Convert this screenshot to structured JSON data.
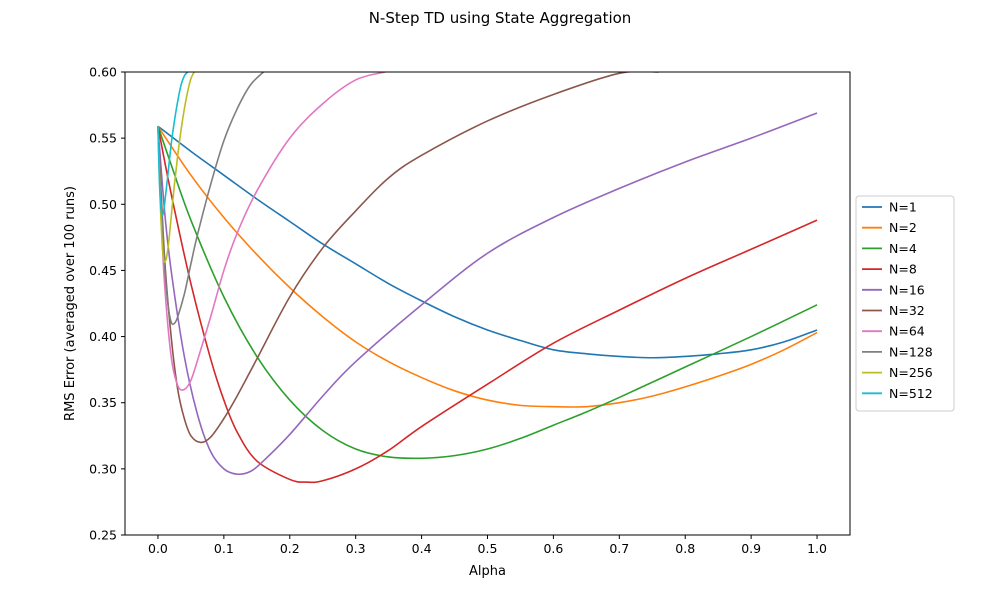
{
  "chart_data": {
    "type": "line",
    "title": "N-Step TD using State Aggregation",
    "xlabel": "Alpha",
    "ylabel": "RMS Error (averaged over 100 runs)",
    "xlim": [
      -0.05,
      1.05
    ],
    "ylim": [
      0.25,
      0.6
    ],
    "xticks": [
      "0.0",
      "0.1",
      "0.2",
      "0.3",
      "0.4",
      "0.5",
      "0.6",
      "0.7",
      "0.8",
      "0.9",
      "1.0"
    ],
    "yticks": [
      "0.25",
      "0.30",
      "0.35",
      "0.40",
      "0.45",
      "0.50",
      "0.55",
      "0.60"
    ],
    "grid": false,
    "legend_position": "right-outside",
    "series": [
      {
        "name": "N=1",
        "color": "#1f77b4",
        "x": [
          0,
          0.05,
          0.1,
          0.15,
          0.2,
          0.25,
          0.3,
          0.35,
          0.4,
          0.45,
          0.5,
          0.55,
          0.6,
          0.65,
          0.7,
          0.75,
          0.8,
          0.85,
          0.9,
          0.95,
          1.0
        ],
        "y": [
          0.559,
          0.54,
          0.522,
          0.504,
          0.487,
          0.47,
          0.455,
          0.44,
          0.427,
          0.415,
          0.405,
          0.397,
          0.39,
          0.387,
          0.385,
          0.384,
          0.385,
          0.387,
          0.39,
          0.396,
          0.405
        ]
      },
      {
        "name": "N=2",
        "color": "#ff7f0e",
        "x": [
          0,
          0.05,
          0.1,
          0.15,
          0.2,
          0.25,
          0.3,
          0.35,
          0.4,
          0.45,
          0.5,
          0.55,
          0.6,
          0.65,
          0.7,
          0.75,
          0.8,
          0.85,
          0.9,
          0.95,
          1.0
        ],
        "y": [
          0.559,
          0.522,
          0.49,
          0.462,
          0.437,
          0.415,
          0.396,
          0.381,
          0.369,
          0.359,
          0.352,
          0.348,
          0.347,
          0.347,
          0.35,
          0.355,
          0.362,
          0.37,
          0.379,
          0.39,
          0.403
        ]
      },
      {
        "name": "N=4",
        "color": "#2ca02c",
        "x": [
          0,
          0.02,
          0.05,
          0.1,
          0.15,
          0.2,
          0.25,
          0.3,
          0.35,
          0.4,
          0.45,
          0.5,
          0.55,
          0.6,
          0.65,
          0.7,
          0.8,
          0.9,
          1.0
        ],
        "y": [
          0.559,
          0.53,
          0.488,
          0.43,
          0.385,
          0.352,
          0.329,
          0.315,
          0.309,
          0.308,
          0.31,
          0.315,
          0.323,
          0.333,
          0.343,
          0.354,
          0.377,
          0.4,
          0.424
        ]
      },
      {
        "name": "N=8",
        "color": "#d62728",
        "x": [
          0,
          0.02,
          0.05,
          0.08,
          0.1,
          0.12,
          0.15,
          0.2,
          0.225,
          0.25,
          0.3,
          0.35,
          0.4,
          0.5,
          0.6,
          0.7,
          0.8,
          0.9,
          1.0
        ],
        "y": [
          0.559,
          0.508,
          0.44,
          0.383,
          0.352,
          0.328,
          0.306,
          0.292,
          0.29,
          0.291,
          0.3,
          0.314,
          0.332,
          0.364,
          0.395,
          0.42,
          0.444,
          0.466,
          0.488
        ]
      },
      {
        "name": "N=16",
        "color": "#9467bd",
        "x": [
          0,
          0.01,
          0.02,
          0.04,
          0.06,
          0.08,
          0.1,
          0.12,
          0.14,
          0.16,
          0.2,
          0.25,
          0.3,
          0.4,
          0.5,
          0.6,
          0.7,
          0.8,
          0.9,
          1.0
        ],
        "y": [
          0.559,
          0.495,
          0.45,
          0.385,
          0.341,
          0.313,
          0.3,
          0.296,
          0.298,
          0.306,
          0.326,
          0.355,
          0.381,
          0.424,
          0.463,
          0.49,
          0.512,
          0.532,
          0.55,
          0.569
        ]
      },
      {
        "name": "N=32",
        "color": "#8c564b",
        "x": [
          0,
          0.01,
          0.02,
          0.03,
          0.04,
          0.05,
          0.065,
          0.08,
          0.1,
          0.12,
          0.15,
          0.2,
          0.25,
          0.3,
          0.35,
          0.4,
          0.5,
          0.6,
          0.7,
          0.76
        ],
        "y": [
          0.559,
          0.46,
          0.4,
          0.36,
          0.338,
          0.325,
          0.32,
          0.324,
          0.338,
          0.355,
          0.383,
          0.43,
          0.467,
          0.495,
          0.52,
          0.537,
          0.563,
          0.583,
          0.599,
          0.6
        ]
      },
      {
        "name": "N=64",
        "color": "#e377c2",
        "x": [
          0,
          0.005,
          0.01,
          0.02,
          0.03,
          0.04,
          0.05,
          0.06,
          0.08,
          0.1,
          0.12,
          0.15,
          0.2,
          0.25,
          0.3,
          0.345
        ],
        "y": [
          0.559,
          0.49,
          0.44,
          0.385,
          0.363,
          0.36,
          0.367,
          0.382,
          0.415,
          0.45,
          0.478,
          0.51,
          0.55,
          0.576,
          0.594,
          0.6
        ]
      },
      {
        "name": "N=128",
        "color": "#7f7f7f",
        "x": [
          0,
          0.005,
          0.01,
          0.015,
          0.02,
          0.025,
          0.03,
          0.04,
          0.05,
          0.06,
          0.08,
          0.1,
          0.12,
          0.14,
          0.16
        ],
        "y": [
          0.559,
          0.5,
          0.455,
          0.425,
          0.411,
          0.41,
          0.415,
          0.432,
          0.455,
          0.477,
          0.515,
          0.548,
          0.572,
          0.59,
          0.6
        ]
      },
      {
        "name": "N=256",
        "color": "#bcbd22",
        "x": [
          0,
          0.004,
          0.008,
          0.012,
          0.016,
          0.02,
          0.025,
          0.03,
          0.035,
          0.04,
          0.045,
          0.05,
          0.055
        ],
        "y": [
          0.559,
          0.495,
          0.46,
          0.458,
          0.47,
          0.49,
          0.515,
          0.537,
          0.556,
          0.572,
          0.585,
          0.595,
          0.6
        ]
      },
      {
        "name": "N=512",
        "color": "#17becf",
        "x": [
          0,
          0.002,
          0.004,
          0.006,
          0.008,
          0.01,
          0.015,
          0.02,
          0.025,
          0.03,
          0.035,
          0.04,
          0.045
        ],
        "y": [
          0.559,
          0.52,
          0.5,
          0.492,
          0.493,
          0.5,
          0.522,
          0.545,
          0.563,
          0.578,
          0.59,
          0.597,
          0.6
        ]
      }
    ]
  }
}
